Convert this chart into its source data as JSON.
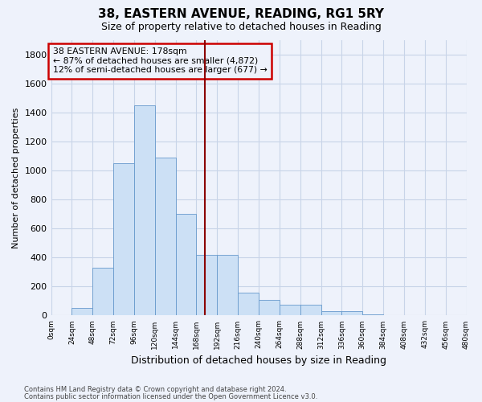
{
  "title": "38, EASTERN AVENUE, READING, RG1 5RY",
  "subtitle": "Size of property relative to detached houses in Reading",
  "xlabel": "Distribution of detached houses by size in Reading",
  "ylabel": "Number of detached properties",
  "footnote1": "Contains HM Land Registry data © Crown copyright and database right 2024.",
  "footnote2": "Contains public sector information licensed under the Open Government Licence v3.0.",
  "property_label": "38 EASTERN AVENUE: 178sqm",
  "annotation_line1": "← 87% of detached houses are smaller (4,872)",
  "annotation_line2": "12% of semi-detached houses are larger (677) →",
  "property_value": 178,
  "bins": [
    0,
    24,
    48,
    72,
    96,
    120,
    144,
    168,
    192,
    216,
    240,
    264,
    288,
    312,
    336,
    360,
    384,
    408,
    432,
    456,
    480
  ],
  "bin_labels": [
    "0sqm",
    "24sqm",
    "48sqm",
    "72sqm",
    "96sqm",
    "120sqm",
    "144sqm",
    "168sqm",
    "192sqm",
    "216sqm",
    "240sqm",
    "264sqm",
    "288sqm",
    "312sqm",
    "336sqm",
    "360sqm",
    "384sqm",
    "408sqm",
    "432sqm",
    "456sqm",
    "480sqm"
  ],
  "counts": [
    5,
    50,
    330,
    1050,
    1450,
    1090,
    700,
    420,
    420,
    160,
    110,
    75,
    75,
    30,
    30,
    10,
    5,
    0,
    0,
    0
  ],
  "bar_color": "#cce0f5",
  "bar_edge_color": "#6699cc",
  "vline_color": "#8b0000",
  "annotation_box_color": "#cc0000",
  "grid_color": "#c8d4e8",
  "background_color": "#eef2fb",
  "ylim": [
    0,
    1900
  ],
  "yticks": [
    0,
    200,
    400,
    600,
    800,
    1000,
    1200,
    1400,
    1600,
    1800
  ],
  "title_fontsize": 11,
  "subtitle_fontsize": 9,
  "ylabel_fontsize": 8,
  "xlabel_fontsize": 9
}
